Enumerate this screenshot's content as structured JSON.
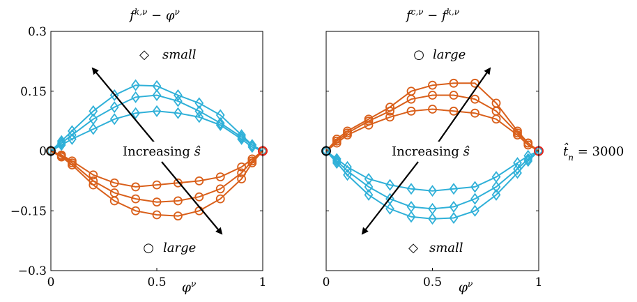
{
  "chart_data": [
    {
      "type": "line",
      "title": "f^{k,ν} − φ^ν",
      "xlabel": "φ^ν",
      "xlim": [
        0,
        1
      ],
      "ylim": [
        -0.3,
        0.3
      ],
      "xticks": [
        0,
        0.5,
        1
      ],
      "xtick_labels": [
        "0",
        "0.5",
        "1"
      ],
      "yticks": [
        0.3,
        0.15,
        0,
        -0.15,
        -0.3
      ],
      "ytick_labels": [
        "0.3",
        "0.15",
        "0",
        "−0.15",
        "−0.3"
      ],
      "legend_top": {
        "marker": "◇",
        "text": "small"
      },
      "legend_bottom": {
        "marker": "○",
        "text": "large"
      },
      "annotation": {
        "text": "Increasing",
        "symbol": "ŝ"
      },
      "series": [
        {
          "color": "#2fb0d8",
          "marker": "diamond",
          "x": [
            0,
            0.05,
            0.1,
            0.2,
            0.3,
            0.4,
            0.5,
            0.6,
            0.7,
            0.8,
            0.9,
            0.95,
            1
          ],
          "y": [
            0,
            0.025,
            0.05,
            0.1,
            0.14,
            0.165,
            0.163,
            0.14,
            0.12,
            0.09,
            0.04,
            0.015,
            0
          ]
        },
        {
          "color": "#2fb0d8",
          "marker": "diamond",
          "x": [
            0,
            0.05,
            0.1,
            0.2,
            0.3,
            0.4,
            0.5,
            0.6,
            0.7,
            0.8,
            0.9,
            0.95,
            1
          ],
          "y": [
            0,
            0.02,
            0.04,
            0.08,
            0.11,
            0.135,
            0.14,
            0.125,
            0.1,
            0.07,
            0.035,
            0.015,
            0
          ]
        },
        {
          "color": "#2fb0d8",
          "marker": "diamond",
          "x": [
            0,
            0.05,
            0.1,
            0.2,
            0.3,
            0.4,
            0.5,
            0.6,
            0.7,
            0.8,
            0.9,
            0.95,
            1
          ],
          "y": [
            0,
            0.015,
            0.03,
            0.055,
            0.08,
            0.095,
            0.1,
            0.095,
            0.085,
            0.065,
            0.03,
            0.01,
            0
          ]
        },
        {
          "color": "#d95f1a",
          "marker": "circle",
          "x": [
            0,
            0.05,
            0.1,
            0.2,
            0.3,
            0.4,
            0.5,
            0.6,
            0.7,
            0.8,
            0.9,
            0.95,
            1
          ],
          "y": [
            0,
            -0.01,
            -0.025,
            -0.06,
            -0.08,
            -0.09,
            -0.085,
            -0.08,
            -0.075,
            -0.065,
            -0.04,
            -0.02,
            0
          ]
        },
        {
          "color": "#d95f1a",
          "marker": "circle",
          "x": [
            0,
            0.05,
            0.1,
            0.2,
            0.3,
            0.4,
            0.5,
            0.6,
            0.7,
            0.8,
            0.9,
            0.95,
            1
          ],
          "y": [
            0,
            -0.012,
            -0.03,
            -0.075,
            -0.105,
            -0.12,
            -0.128,
            -0.125,
            -0.115,
            -0.095,
            -0.055,
            -0.025,
            0
          ]
        },
        {
          "color": "#d95f1a",
          "marker": "circle",
          "x": [
            0,
            0.05,
            0.1,
            0.2,
            0.3,
            0.4,
            0.5,
            0.6,
            0.7,
            0.8,
            0.9,
            0.95,
            1
          ],
          "y": [
            0,
            -0.015,
            -0.035,
            -0.085,
            -0.125,
            -0.15,
            -0.16,
            -0.163,
            -0.15,
            -0.12,
            -0.07,
            -0.03,
            0
          ]
        }
      ]
    },
    {
      "type": "line",
      "title": "f^{c,ν} − f^{k,ν}",
      "xlabel": "φ^ν",
      "xlim": [
        0,
        1
      ],
      "ylim": [
        -0.3,
        0.3
      ],
      "xticks": [
        0,
        0.5,
        1
      ],
      "xtick_labels": [
        "0",
        "0.5",
        "1"
      ],
      "legend_top": {
        "marker": "○",
        "text": "large"
      },
      "legend_bottom": {
        "marker": "◇",
        "text": "small"
      },
      "annotation": {
        "text": "Increasing",
        "symbol": "ŝ"
      },
      "side_label": "t̂_n = 3000",
      "series": [
        {
          "color": "#d95f1a",
          "marker": "circle",
          "x": [
            0,
            0.05,
            0.1,
            0.2,
            0.3,
            0.4,
            0.5,
            0.6,
            0.7,
            0.8,
            0.9,
            0.95,
            1
          ],
          "y": [
            0,
            0.03,
            0.05,
            0.08,
            0.11,
            0.15,
            0.165,
            0.17,
            0.17,
            0.12,
            0.05,
            0.02,
            0
          ]
        },
        {
          "color": "#d95f1a",
          "marker": "circle",
          "x": [
            0,
            0.05,
            0.1,
            0.2,
            0.3,
            0.4,
            0.5,
            0.6,
            0.7,
            0.8,
            0.9,
            0.95,
            1
          ],
          "y": [
            0,
            0.025,
            0.045,
            0.075,
            0.1,
            0.13,
            0.14,
            0.14,
            0.13,
            0.1,
            0.045,
            0.02,
            0
          ]
        },
        {
          "color": "#d95f1a",
          "marker": "circle",
          "x": [
            0,
            0.05,
            0.1,
            0.2,
            0.3,
            0.4,
            0.5,
            0.6,
            0.7,
            0.8,
            0.9,
            0.95,
            1
          ],
          "y": [
            0,
            0.02,
            0.04,
            0.065,
            0.085,
            0.1,
            0.105,
            0.1,
            0.095,
            0.08,
            0.04,
            0.015,
            0
          ]
        },
        {
          "color": "#2fb0d8",
          "marker": "diamond",
          "x": [
            0,
            0.05,
            0.1,
            0.2,
            0.3,
            0.4,
            0.5,
            0.6,
            0.7,
            0.8,
            0.9,
            0.95,
            1
          ],
          "y": [
            0,
            -0.02,
            -0.04,
            -0.07,
            -0.085,
            -0.095,
            -0.1,
            -0.095,
            -0.09,
            -0.065,
            -0.03,
            -0.012,
            0
          ]
        },
        {
          "color": "#2fb0d8",
          "marker": "diamond",
          "x": [
            0,
            0.05,
            0.1,
            0.2,
            0.3,
            0.4,
            0.5,
            0.6,
            0.7,
            0.8,
            0.9,
            0.95,
            1
          ],
          "y": [
            0,
            -0.025,
            -0.05,
            -0.09,
            -0.12,
            -0.14,
            -0.145,
            -0.14,
            -0.12,
            -0.09,
            -0.045,
            -0.02,
            0
          ]
        },
        {
          "color": "#2fb0d8",
          "marker": "diamond",
          "x": [
            0,
            0.05,
            0.1,
            0.2,
            0.3,
            0.4,
            0.5,
            0.6,
            0.7,
            0.8,
            0.9,
            0.95,
            1
          ],
          "y": [
            0,
            -0.03,
            -0.06,
            -0.11,
            -0.145,
            -0.165,
            -0.17,
            -0.168,
            -0.15,
            -0.11,
            -0.055,
            -0.025,
            0
          ]
        }
      ]
    }
  ]
}
